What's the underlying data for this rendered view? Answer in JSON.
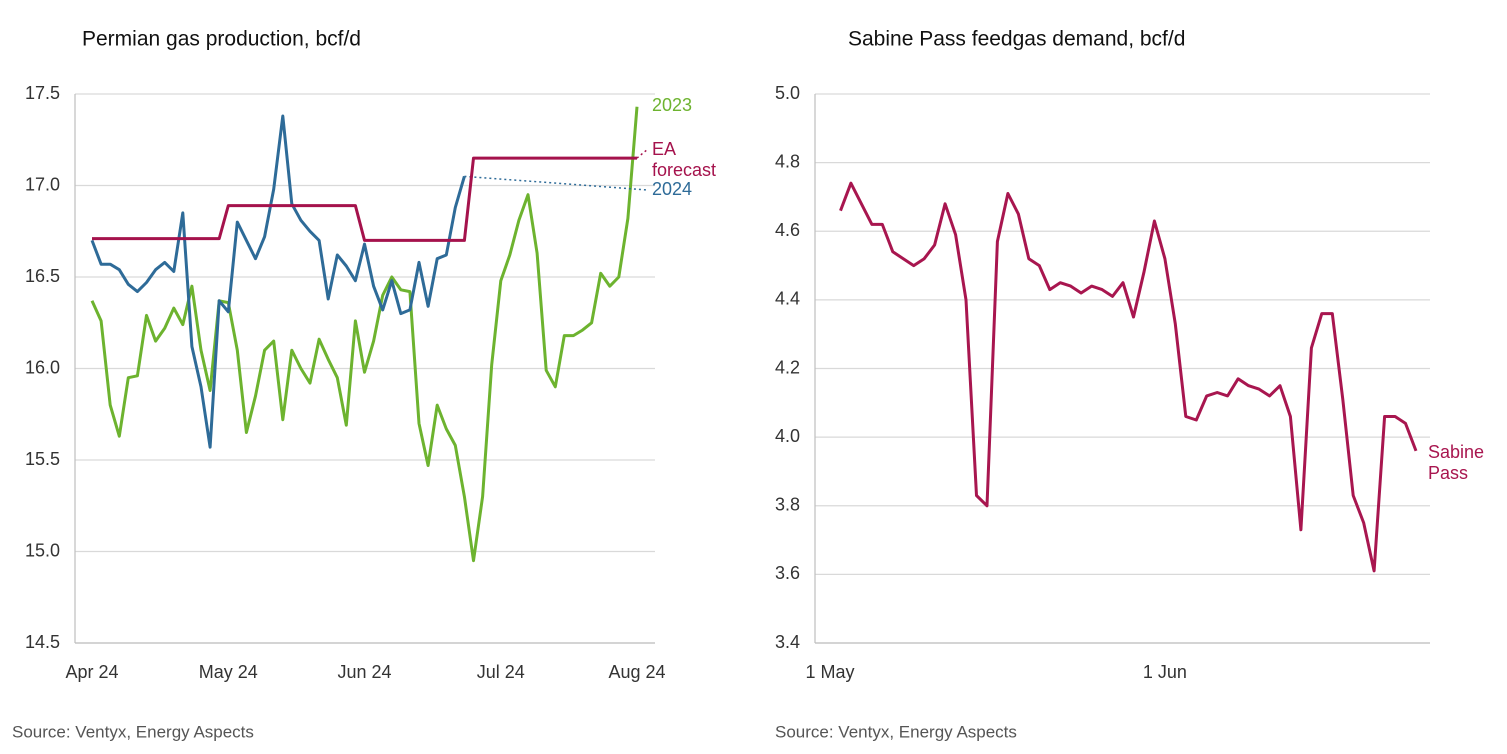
{
  "chart_data": [
    {
      "type": "line",
      "title": "Permian gas production, bcf/d",
      "source": "Source: Ventyx, Energy Aspects",
      "categories": [
        "Apr 24",
        null,
        null,
        null,
        null,
        null,
        null,
        null,
        null,
        null,
        null,
        null,
        null,
        null,
        null,
        "May 24",
        null,
        null,
        null,
        null,
        null,
        null,
        null,
        null,
        null,
        null,
        null,
        null,
        null,
        null,
        "Jun 24",
        null,
        null,
        null,
        null,
        null,
        null,
        null,
        null,
        null,
        null,
        null,
        null,
        null,
        null,
        "Jul 24",
        null,
        null,
        null,
        null,
        null,
        null,
        null,
        null,
        null,
        null,
        null,
        null,
        null,
        null,
        "Aug 24"
      ],
      "ylim": [
        14.5,
        17.5
      ],
      "yticks": [
        14.5,
        {
          "value": 15,
          "label": "15.0"
        },
        15.5,
        {
          "value": 16,
          "label": "16.0"
        },
        16.5,
        {
          "value": 17,
          "label": "17.0"
        },
        17.5
      ],
      "grid": true,
      "series": [
        {
          "name": "2023",
          "color": "#6db32f",
          "values": [
            16.37,
            16.26,
            15.8,
            15.63,
            15.95,
            15.96,
            16.29,
            16.15,
            16.22,
            16.33,
            16.24,
            16.45,
            16.1,
            15.88,
            16.37,
            16.36,
            16.1,
            15.65,
            15.85,
            16.1,
            16.15,
            15.72,
            16.1,
            16.0,
            15.92,
            16.16,
            16.05,
            15.95,
            15.69,
            16.26,
            15.98,
            16.15,
            16.4,
            16.5,
            16.43,
            16.42,
            15.7,
            15.47,
            15.8,
            15.67,
            15.58,
            15.3,
            14.95,
            15.3,
            16.02,
            16.48,
            16.62,
            16.81,
            16.95,
            16.63,
            15.99,
            15.9,
            16.18,
            16.18,
            16.21,
            16.25,
            16.52,
            16.45,
            16.5,
            16.82,
            17.43
          ]
        },
        {
          "name": "2024",
          "color": "#2e6b98",
          "values": [
            16.7,
            16.57,
            16.57,
            16.54,
            16.46,
            16.42,
            16.47,
            16.54,
            16.58,
            16.53,
            16.85,
            16.12,
            15.9,
            15.57,
            16.37,
            16.31,
            16.8,
            16.7,
            16.6,
            16.72,
            16.98,
            17.38,
            16.9,
            16.81,
            16.75,
            16.7,
            16.38,
            16.62,
            16.56,
            16.48,
            16.68,
            16.45,
            16.32,
            16.48,
            16.3,
            16.32,
            16.58,
            16.34,
            16.6,
            16.62,
            16.88,
            17.05,
            null,
            null,
            null,
            null,
            null,
            null,
            null,
            null,
            null,
            null,
            null,
            null,
            null,
            null,
            null,
            null,
            null,
            null,
            null
          ]
        },
        {
          "name": "EA forecast",
          "color": "#a5124c",
          "values": [
            16.71,
            16.71,
            16.71,
            16.71,
            16.71,
            16.71,
            16.71,
            16.71,
            16.71,
            16.71,
            16.71,
            16.71,
            16.71,
            16.71,
            16.71,
            16.89,
            16.89,
            16.89,
            16.89,
            16.89,
            16.89,
            16.89,
            16.89,
            16.89,
            16.89,
            16.89,
            16.89,
            16.89,
            16.89,
            16.89,
            16.7,
            16.7,
            16.7,
            16.7,
            16.7,
            16.7,
            16.7,
            16.7,
            16.7,
            16.7,
            16.7,
            16.7,
            17.15,
            17.15,
            17.15,
            17.15,
            17.15,
            17.15,
            17.15,
            17.15,
            17.15,
            17.15,
            17.15,
            17.15,
            17.15,
            17.15,
            17.15,
            17.15,
            17.15,
            17.15,
            17.15
          ]
        }
      ]
    },
    {
      "type": "line",
      "title": "Sabine Pass feedgas demand, bcf/d",
      "source": "Source: Ventyx, Energy Aspects",
      "categories": [
        "1 May",
        null,
        null,
        null,
        null,
        null,
        null,
        null,
        null,
        null,
        null,
        null,
        null,
        null,
        null,
        null,
        null,
        null,
        null,
        null,
        null,
        null,
        null,
        null,
        null,
        null,
        null,
        null,
        null,
        null,
        null,
        null,
        "1 Jun",
        null,
        null,
        null,
        null,
        null,
        null,
        null,
        null,
        null,
        null,
        null,
        null,
        null,
        null,
        null,
        null,
        null,
        null,
        null,
        null,
        null,
        null,
        null,
        null
      ],
      "ylim": [
        3.4,
        5.0
      ],
      "yticks": [
        3.4,
        3.6,
        3.8,
        {
          "value": 4,
          "label": "4.0"
        },
        4.2,
        4.4,
        4.6,
        4.8,
        {
          "value": 5,
          "label": "5.0"
        }
      ],
      "grid": true,
      "series": [
        {
          "name": "Sabine Pass",
          "color": "#a8164f",
          "values": [
            null,
            4.66,
            4.74,
            4.68,
            4.62,
            4.62,
            4.54,
            4.52,
            4.5,
            4.52,
            4.56,
            4.68,
            4.59,
            4.4,
            3.83,
            3.8,
            4.57,
            4.71,
            4.65,
            4.52,
            4.5,
            4.43,
            4.45,
            4.44,
            4.42,
            4.44,
            4.43,
            4.41,
            4.45,
            4.35,
            4.48,
            4.63,
            4.52,
            4.33,
            4.06,
            4.05,
            4.12,
            4.13,
            4.12,
            4.17,
            4.15,
            4.14,
            4.12,
            4.15,
            4.06,
            3.73,
            4.26,
            4.36,
            4.36,
            4.11,
            3.83,
            3.75,
            3.61,
            4.06,
            4.06,
            4.04,
            3.96
          ]
        }
      ]
    }
  ]
}
